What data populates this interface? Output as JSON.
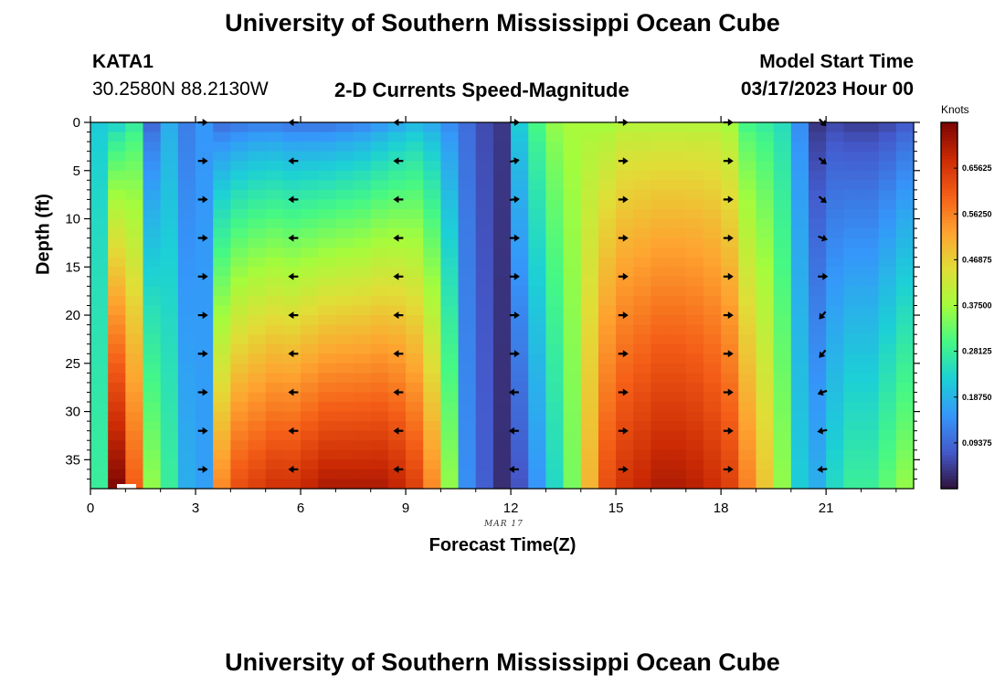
{
  "header": {
    "title": "University of Southern Mississippi Ocean Cube",
    "station_id": "KATA1",
    "station_coords": "30.2580N  88.2130W",
    "plot_title": "2-D Currents Speed-Magnitude",
    "model_start_label": "Model Start Time",
    "model_start_value": "03/17/2023 Hour 00",
    "footer_title": "University of Southern Mississippi Ocean Cube"
  },
  "chart_data": {
    "type": "heatmap",
    "title": "2-D Currents Speed-Magnitude",
    "xlabel": "Forecast Time(Z)",
    "ylabel": "Depth (ft)",
    "xlim": [
      0,
      23.5
    ],
    "ylim": [
      38,
      0
    ],
    "x_ticks": [
      0,
      3,
      6,
      9,
      12,
      15,
      18,
      21
    ],
    "x_tick_labels": [
      "0",
      "3",
      "6",
      "9",
      "12",
      "15",
      "18",
      "21"
    ],
    "y_ticks": [
      0,
      5,
      10,
      15,
      20,
      25,
      30,
      35
    ],
    "y_tick_labels": [
      "0",
      "5",
      "10",
      "15",
      "20",
      "25",
      "30",
      "35"
    ],
    "date_label": "MAR 17",
    "colorbar": {
      "title": "Knots",
      "range": [
        0.0,
        0.75
      ],
      "tick_values": [
        0.65625,
        0.5625,
        0.46875,
        0.375,
        0.28125,
        0.1875,
        0.09375
      ],
      "tick_labels": [
        "0.65625",
        "0.56250",
        "0.46875",
        "0.37500",
        "0.28125",
        "0.18750",
        "0.09375"
      ]
    },
    "column_hours": [
      0.25,
      0.75,
      1.25,
      1.75,
      2.25,
      2.75,
      3.25,
      3.75,
      4.25,
      4.75,
      5.25,
      5.75,
      6.25,
      6.75,
      7.25,
      7.75,
      8.25,
      8.75,
      9.25,
      9.75,
      10.25,
      10.75,
      11.25,
      11.75,
      12.25,
      12.75,
      13.25,
      13.75,
      14.25,
      14.75,
      15.25,
      15.75,
      16.25,
      16.75,
      17.25,
      17.75,
      18.25,
      18.75,
      19.25,
      19.75,
      20.25,
      20.75,
      21.25,
      21.75,
      22.25,
      22.75,
      23.25
    ],
    "column_profiles_surface_bottom": [
      [
        0.22,
        0.28
      ],
      [
        0.24,
        0.74
      ],
      [
        0.28,
        0.6
      ],
      [
        0.1,
        0.36
      ],
      [
        0.18,
        0.28
      ],
      [
        0.12,
        0.18
      ],
      [
        0.15,
        0.16
      ],
      [
        0.11,
        0.55
      ],
      [
        0.12,
        0.62
      ],
      [
        0.13,
        0.64
      ],
      [
        0.13,
        0.66
      ],
      [
        0.12,
        0.66
      ],
      [
        0.12,
        0.68
      ],
      [
        0.12,
        0.7
      ],
      [
        0.13,
        0.7
      ],
      [
        0.14,
        0.7
      ],
      [
        0.16,
        0.7
      ],
      [
        0.18,
        0.68
      ],
      [
        0.2,
        0.64
      ],
      [
        0.18,
        0.55
      ],
      [
        0.14,
        0.36
      ],
      [
        0.1,
        0.14
      ],
      [
        0.06,
        0.08
      ],
      [
        0.04,
        0.03
      ],
      [
        0.22,
        0.07
      ],
      [
        0.3,
        0.15
      ],
      [
        0.36,
        0.24
      ],
      [
        0.38,
        0.34
      ],
      [
        0.38,
        0.5
      ],
      [
        0.38,
        0.62
      ],
      [
        0.4,
        0.66
      ],
      [
        0.4,
        0.68
      ],
      [
        0.4,
        0.7
      ],
      [
        0.4,
        0.7
      ],
      [
        0.4,
        0.69
      ],
      [
        0.4,
        0.67
      ],
      [
        0.38,
        0.64
      ],
      [
        0.3,
        0.56
      ],
      [
        0.28,
        0.48
      ],
      [
        0.25,
        0.36
      ],
      [
        0.14,
        0.22
      ],
      [
        0.04,
        0.18
      ],
      [
        0.06,
        0.24
      ],
      [
        0.05,
        0.28
      ],
      [
        0.05,
        0.28
      ],
      [
        0.06,
        0.32
      ],
      [
        0.08,
        0.36
      ]
    ],
    "arrow_hours": [
      3.2,
      5.8,
      8.8,
      12.1,
      15.2,
      18.2,
      20.9
    ],
    "arrow_depths_ft": [
      0,
      4,
      8,
      12,
      16,
      20,
      24,
      28,
      32,
      36
    ],
    "arrow_directions_deg": [
      [
        0,
        0,
        0,
        0,
        0,
        0,
        0,
        0,
        0,
        0
      ],
      [
        180,
        180,
        180,
        180,
        180,
        180,
        180,
        180,
        180,
        180
      ],
      [
        180,
        180,
        180,
        180,
        180,
        180,
        180,
        180,
        180,
        180
      ],
      [
        0,
        10,
        5,
        0,
        0,
        0,
        0,
        180,
        180,
        180
      ],
      [
        0,
        0,
        0,
        0,
        0,
        0,
        0,
        0,
        0,
        0
      ],
      [
        0,
        0,
        0,
        0,
        0,
        0,
        0,
        0,
        0,
        0
      ],
      [
        -45,
        -40,
        -40,
        -20,
        0,
        -130,
        -130,
        -160,
        -170,
        -175
      ]
    ]
  }
}
